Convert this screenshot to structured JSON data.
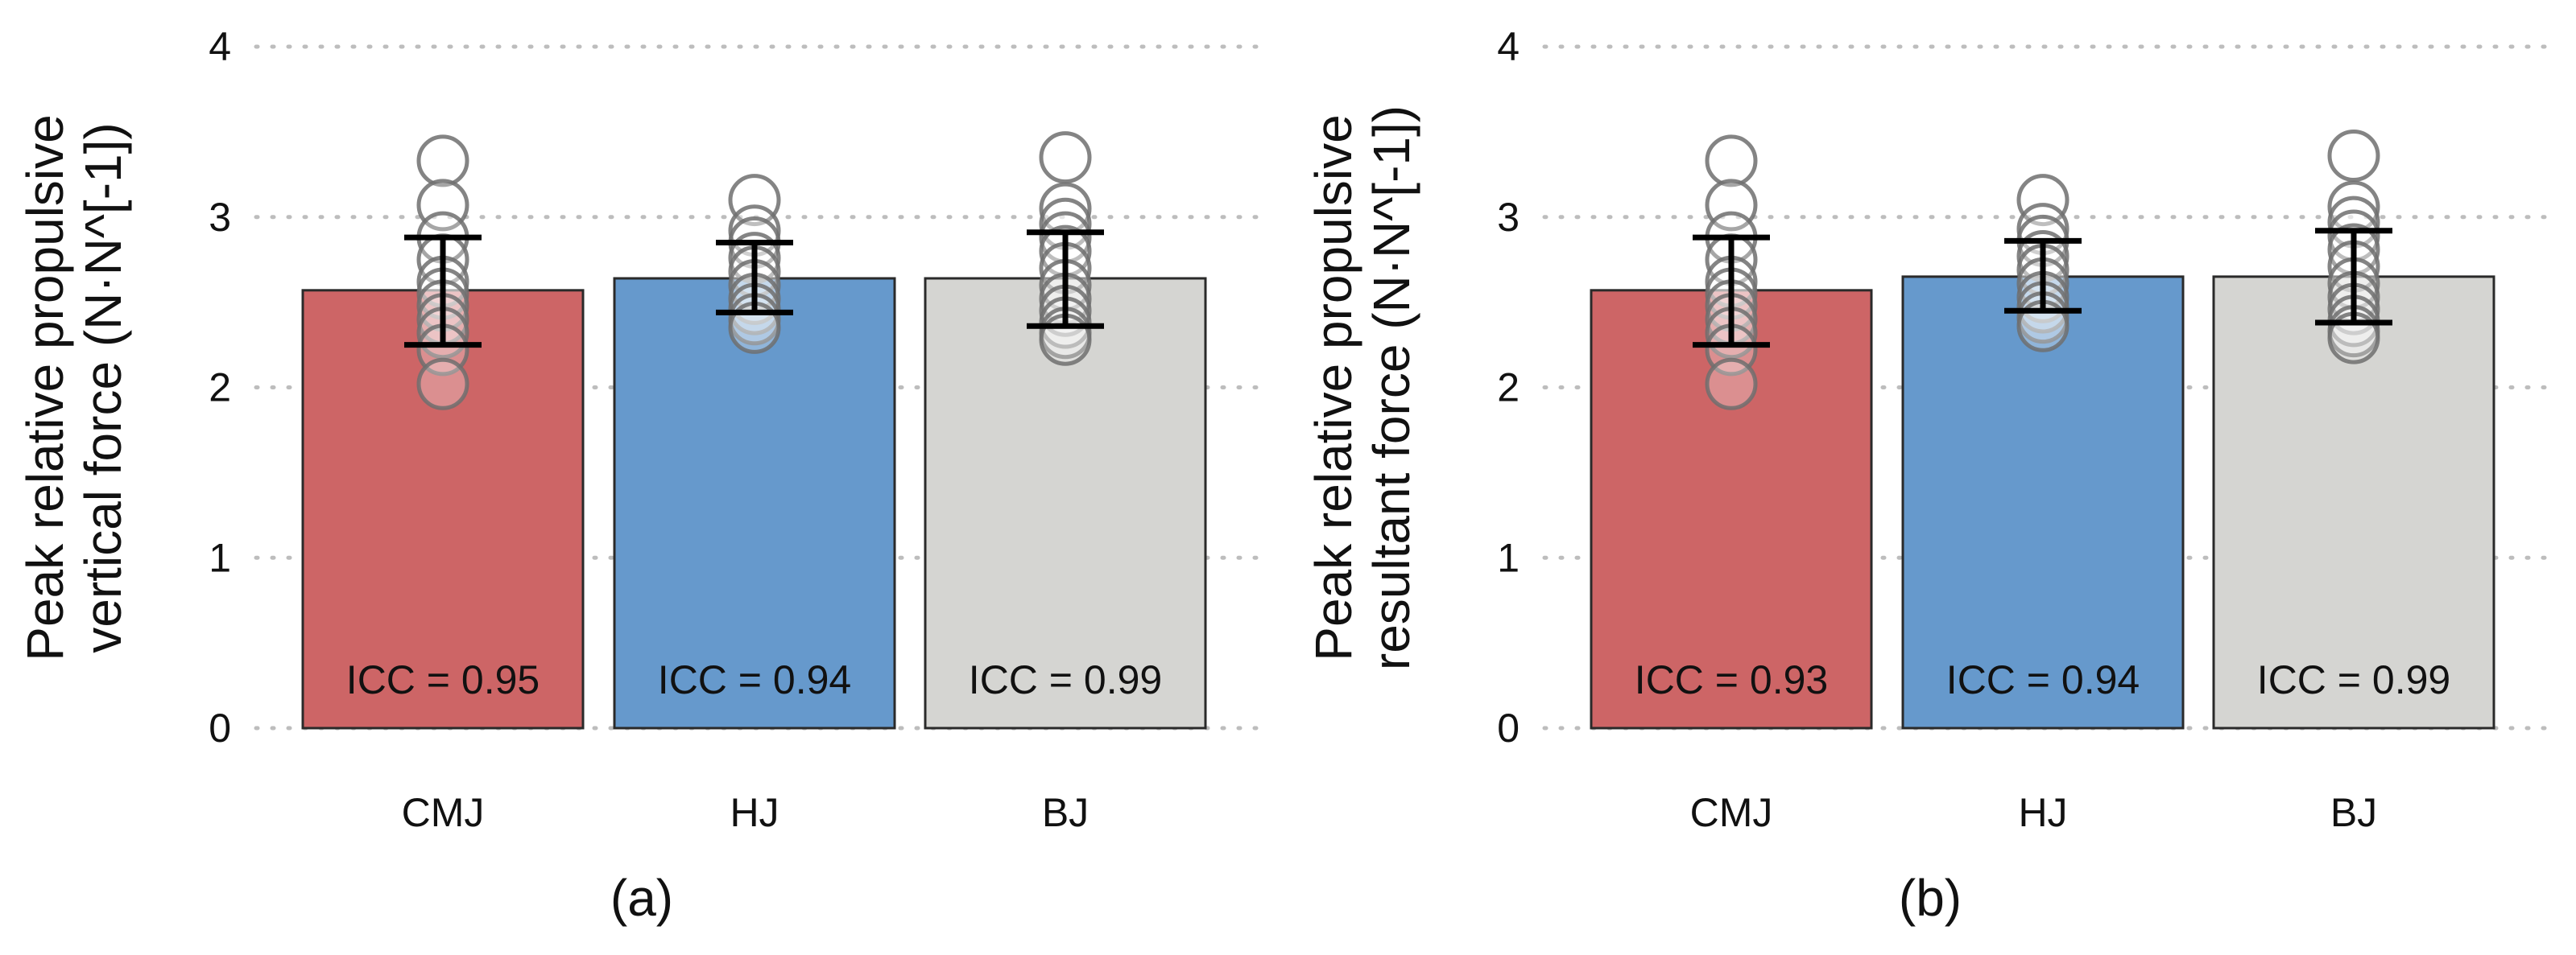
{
  "chart_data": [
    {
      "type": "bar",
      "panel_label": "(a)",
      "ylabel_lines": [
        "Peak relative propulsive",
        "vertical force (N·N^[-1])"
      ],
      "categories": [
        "CMJ",
        "HJ",
        "BJ"
      ],
      "values": [
        2.57,
        2.64,
        2.64
      ],
      "error_low": [
        2.25,
        2.44,
        2.36
      ],
      "error_high": [
        2.88,
        2.85,
        2.91
      ],
      "annotations": [
        "ICC = 0.95",
        "ICC = 0.94",
        "ICC = 0.99"
      ],
      "points": [
        [
          3.33,
          3.07,
          2.88,
          2.75,
          2.62,
          2.55,
          2.48,
          2.4,
          2.32,
          2.22,
          2.02
        ],
        [
          3.1,
          2.92,
          2.85,
          2.76,
          2.68,
          2.6,
          2.52,
          2.46,
          2.4,
          2.35
        ],
        [
          3.35,
          3.05,
          2.96,
          2.88,
          2.8,
          2.7,
          2.6,
          2.52,
          2.45,
          2.38,
          2.32,
          2.28
        ]
      ],
      "ylim": [
        0,
        4
      ],
      "yticks": [
        "0",
        "1",
        "2",
        "3",
        "4"
      ],
      "grid": true,
      "colors": [
        "#CD6566",
        "#6699CC",
        "#D5D5D2"
      ]
    },
    {
      "type": "bar",
      "panel_label": "(b)",
      "ylabel_lines": [
        "Peak relative propulsive",
        "resultant force (N·N^[-1])"
      ],
      "categories": [
        "CMJ",
        "HJ",
        "BJ"
      ],
      "values": [
        2.57,
        2.65,
        2.65
      ],
      "error_low": [
        2.25,
        2.45,
        2.38
      ],
      "error_high": [
        2.88,
        2.86,
        2.92
      ],
      "annotations": [
        "ICC = 0.93",
        "ICC = 0.94",
        "ICC = 0.99"
      ],
      "points": [
        [
          3.33,
          3.07,
          2.88,
          2.75,
          2.62,
          2.55,
          2.48,
          2.4,
          2.32,
          2.22,
          2.02
        ],
        [
          3.1,
          2.93,
          2.86,
          2.77,
          2.69,
          2.61,
          2.53,
          2.47,
          2.41,
          2.36
        ],
        [
          3.36,
          3.06,
          2.97,
          2.89,
          2.81,
          2.71,
          2.61,
          2.53,
          2.46,
          2.39,
          2.33,
          2.29
        ]
      ],
      "ylim": [
        0,
        4
      ],
      "yticks": [
        "0",
        "1",
        "2",
        "3",
        "4"
      ],
      "grid": true,
      "colors": [
        "#CD6566",
        "#6699CC",
        "#D5D5D2"
      ]
    }
  ]
}
